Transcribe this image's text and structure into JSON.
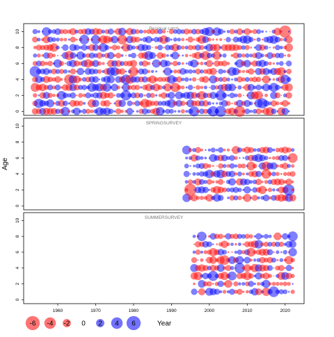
{
  "chart_data": {
    "type": "scatter",
    "subtype": "bubble-residuals",
    "ylabel": "Age",
    "xlabel": "Year",
    "xlim": [
      1951,
      2025
    ],
    "ylim": [
      -0.5,
      11
    ],
    "x_ticks": [
      1960,
      1970,
      1980,
      1990,
      2000,
      2010,
      2020
    ],
    "y_ticks": [
      0,
      2,
      4,
      6,
      8,
      10
    ],
    "colors": {
      "positive": "#0000ff",
      "negative": "#ff0000"
    },
    "legend": {
      "title": "Year",
      "values": [
        -6,
        -4,
        -2,
        0,
        2,
        4,
        6
      ],
      "labels": [
        "-6",
        "-4",
        "-2",
        "0",
        "2",
        "4",
        "6"
      ]
    },
    "panels": [
      {
        "title": "Residual catch",
        "year_range": [
          1954,
          2021
        ],
        "ages": [
          0,
          1,
          2,
          3,
          4,
          5,
          6,
          7,
          8,
          9,
          10
        ],
        "seed": 11,
        "highlights": [
          {
            "year": 1954,
            "age": 5,
            "value": 3.5
          },
          {
            "year": 2020,
            "age": 10,
            "value": -4.5
          },
          {
            "year": 1996,
            "age": 0,
            "value": 3.0
          },
          {
            "year": 1955,
            "age": 1,
            "value": 2.6
          }
        ]
      },
      {
        "title": "SPRINGSURVEY",
        "year_range": [
          1994,
          2022
        ],
        "ages": [
          1,
          2,
          3,
          4,
          5,
          6,
          7
        ],
        "seed": 23,
        "highlights": [
          {
            "year": 1995,
            "age": 2,
            "value": -4.5
          },
          {
            "year": 2021,
            "age": 2,
            "value": 3.8
          },
          {
            "year": 2022,
            "age": 6,
            "value": -2.8
          }
        ]
      },
      {
        "title": "SUMMERSURVEY",
        "year_range": [
          1996,
          2022
        ],
        "ages": [
          1,
          2,
          3,
          4,
          5,
          6,
          7,
          8
        ],
        "seed": 37,
        "highlights": [
          {
            "year": 2017,
            "age": 1,
            "value": 3.4
          },
          {
            "year": 1998,
            "age": 8,
            "value": 2.7
          }
        ]
      }
    ]
  }
}
